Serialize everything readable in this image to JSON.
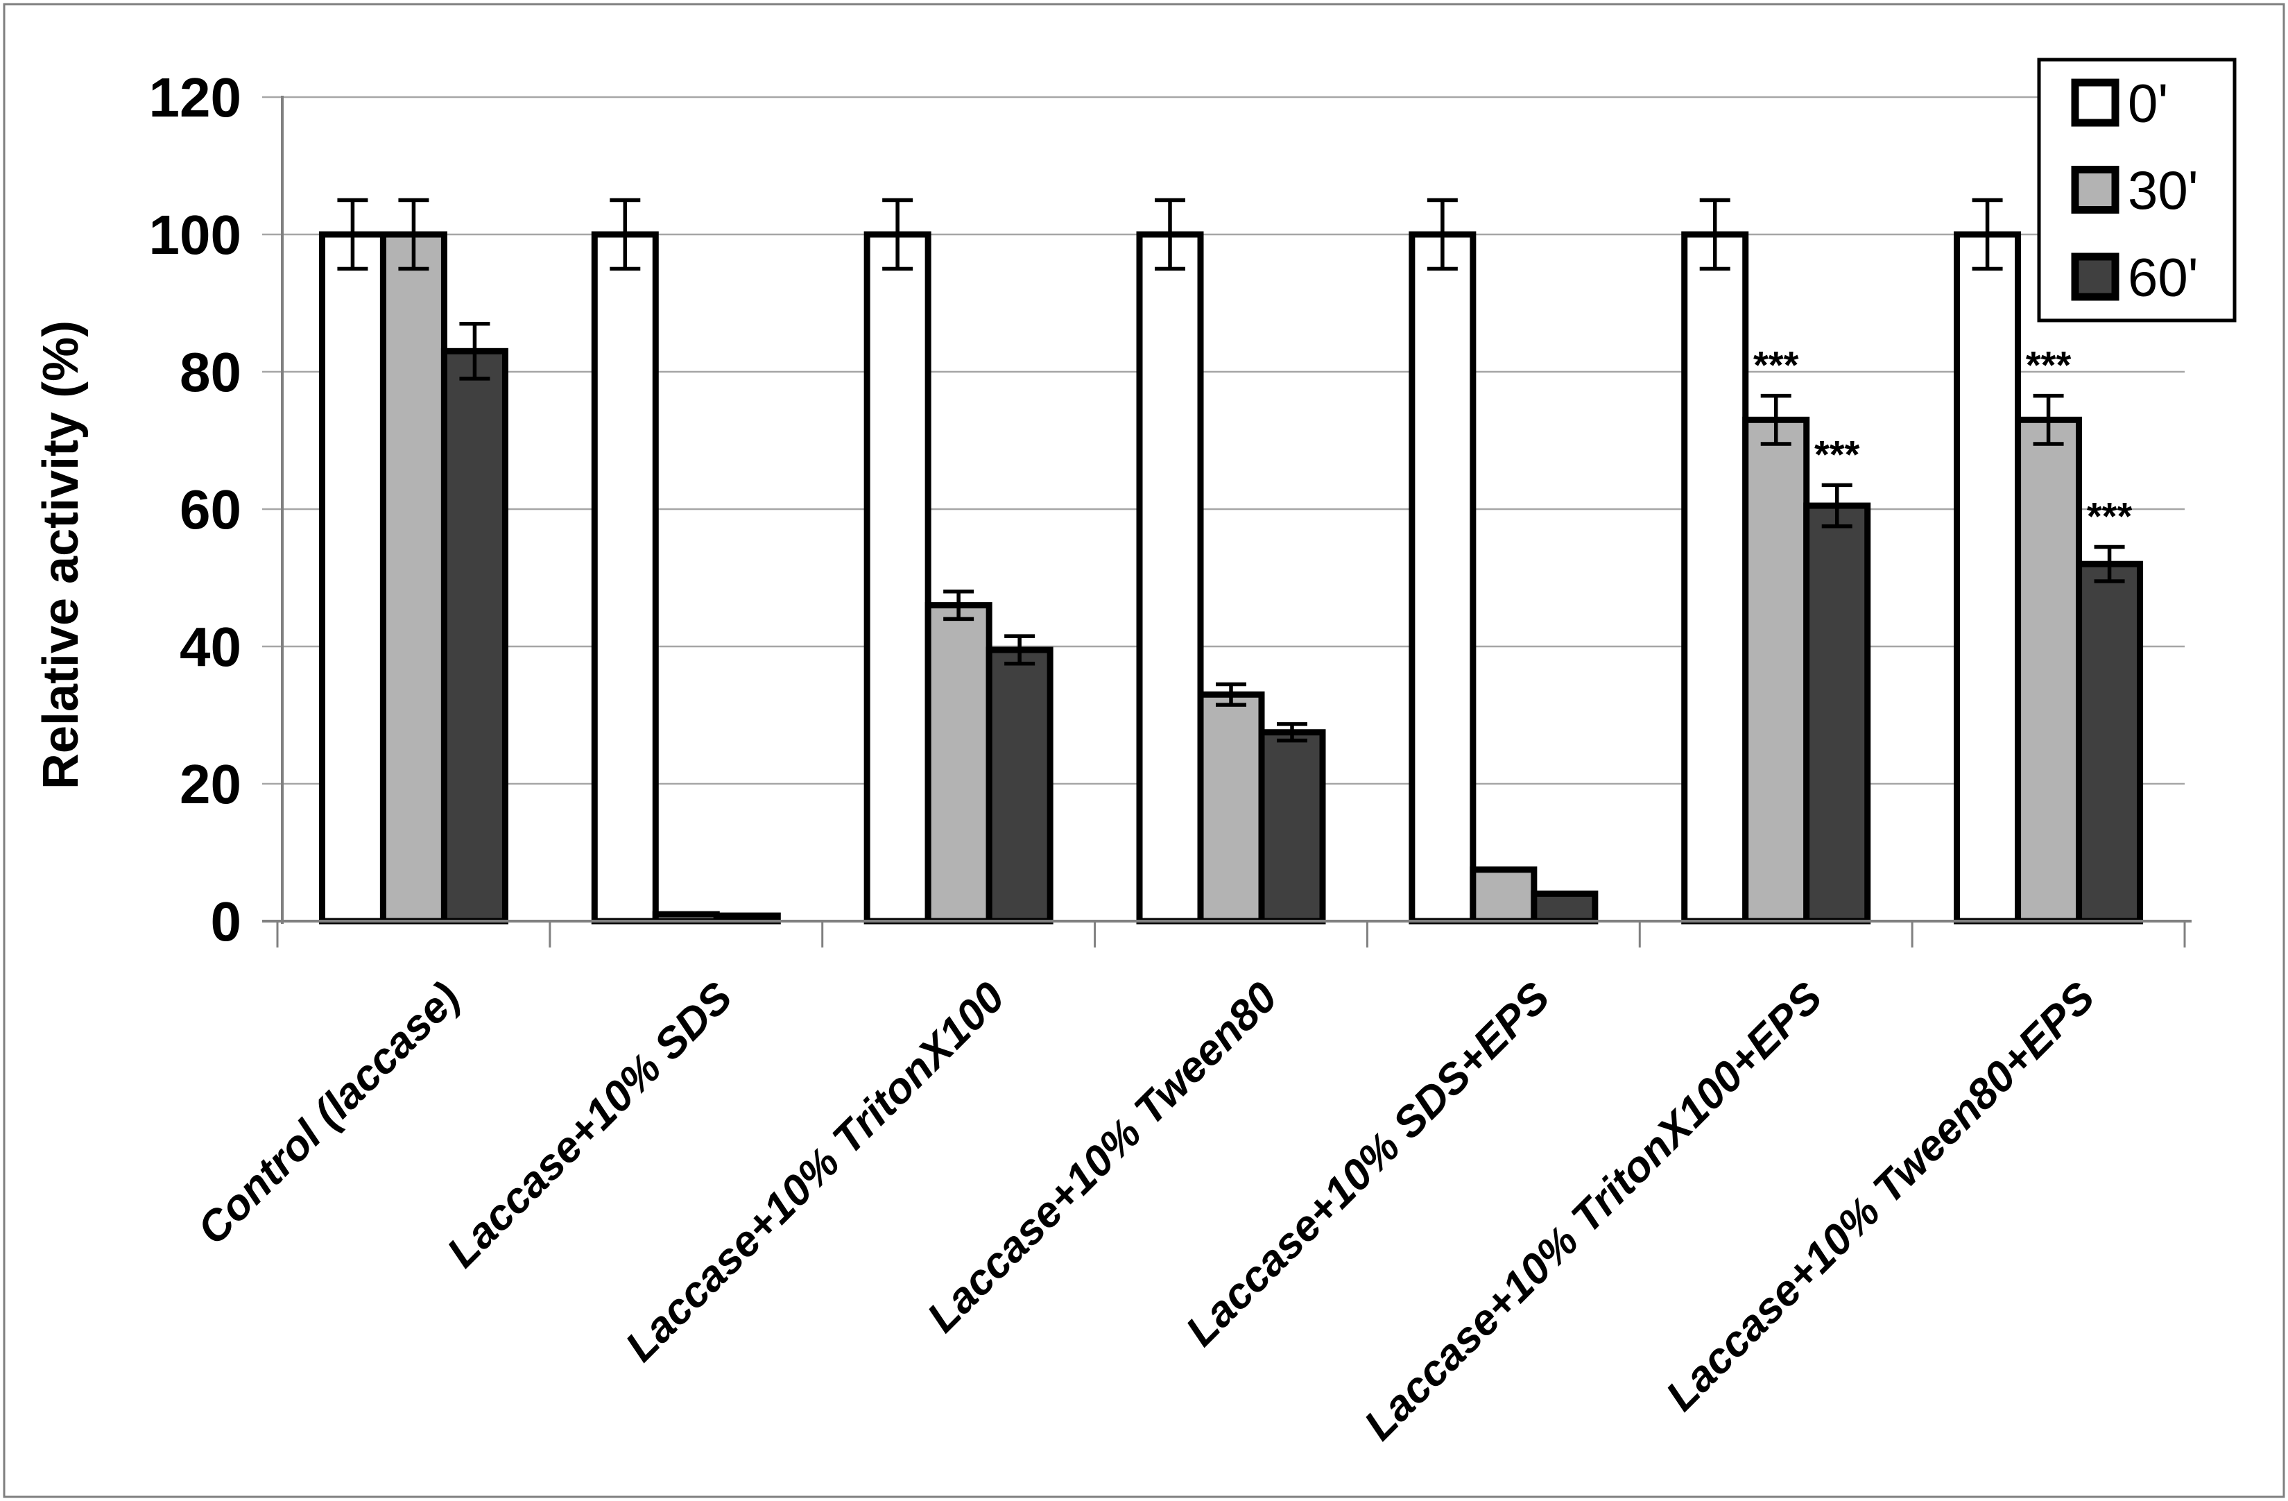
{
  "figure": {
    "background": "#ffffff",
    "border_color": "#7f7f7f"
  },
  "chart_data": {
    "type": "bar",
    "title": "",
    "ylabel": "Relative activity (%)",
    "xlabel": "",
    "ylim": [
      0,
      120
    ],
    "yticks": [
      0,
      20,
      40,
      60,
      80,
      100,
      120
    ],
    "grid": "horizontal-on",
    "gridline_color": "#a6a6a6",
    "axis_color": "#808080",
    "bar_border_color": "#000000",
    "error_bar_color": "#000000",
    "legend_position": "top-right",
    "categories": [
      "Control (laccase)",
      "Laccase+10% SDS",
      "Laccase+10% TritonX100",
      "Laccase+10% Tween80",
      "Laccase+10% SDS+EPS",
      "Laccase+10% TritonX100+EPS",
      "Laccase+10% Tween80+EPS"
    ],
    "series": [
      {
        "name": "0'",
        "fill": "#ffffff",
        "values": [
          100,
          100,
          100,
          100,
          100,
          100,
          100
        ],
        "errors": [
          5,
          5,
          5,
          5,
          5,
          5,
          5
        ],
        "significance": [
          "",
          "",
          "",
          "",
          "",
          "",
          ""
        ]
      },
      {
        "name": "30'",
        "fill": "#b3b3b3",
        "values": [
          100,
          1,
          46,
          33,
          7.5,
          73,
          73
        ],
        "errors": [
          5,
          0,
          2,
          1.5,
          0,
          3.5,
          3.5
        ],
        "significance": [
          "",
          "",
          "",
          "",
          "",
          "***",
          "***"
        ]
      },
      {
        "name": "60'",
        "fill": "#404040",
        "values": [
          83,
          0.8,
          39.5,
          27.5,
          4,
          60.5,
          52
        ],
        "errors": [
          4,
          0,
          2,
          1.2,
          0,
          3,
          2.5
        ],
        "significance": [
          "",
          "",
          "",
          "",
          "",
          "***",
          "***"
        ]
      }
    ]
  }
}
